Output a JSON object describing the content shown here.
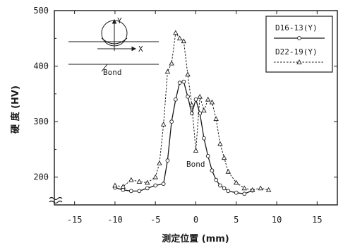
{
  "chart_data": {
    "type": "line",
    "xlabel": "測定位置 (mm)",
    "ylabel": "硬 度 (HV)",
    "xlim": [
      -17.5,
      17.5
    ],
    "ylim": [
      150,
      500
    ],
    "xticks": [
      -15,
      -10,
      -5,
      0,
      5,
      10,
      15
    ],
    "yticks": [
      200,
      300,
      400,
      500
    ],
    "legend_position": "top-right",
    "annotation": "Bond",
    "series": [
      {
        "name": "D16-13(Y)",
        "marker": "circle",
        "line": "solid",
        "x": [
          -10,
          -9,
          -8,
          -7,
          -6,
          -5,
          -4,
          -3.5,
          -3,
          -2.5,
          -2,
          -1.5,
          -1,
          -0.5,
          0,
          0.5,
          1,
          1.5,
          2,
          2.5,
          3,
          3.5,
          4,
          5,
          6,
          7
        ],
        "y": [
          181,
          177,
          175,
          175,
          180,
          185,
          188,
          230,
          300,
          340,
          370,
          372,
          345,
          315,
          340,
          315,
          270,
          238,
          212,
          195,
          185,
          180,
          175,
          172,
          170,
          176
        ]
      },
      {
        "name": "D22-19(Y)",
        "marker": "triangle",
        "line": "dashed",
        "x": [
          -10,
          -9,
          -8,
          -7,
          -6,
          -5,
          -4.5,
          -4,
          -3.5,
          -3,
          -2.5,
          -2,
          -1.5,
          -1,
          -0.5,
          0,
          0.5,
          1,
          1.5,
          2,
          2.5,
          3,
          3.5,
          4,
          5,
          6,
          7,
          8,
          9
        ],
        "y": [
          185,
          183,
          195,
          192,
          190,
          200,
          225,
          295,
          390,
          405,
          460,
          450,
          445,
          385,
          330,
          248,
          345,
          320,
          340,
          335,
          305,
          260,
          235,
          210,
          190,
          180,
          177,
          180,
          177
        ]
      }
    ]
  },
  "inset_labels": {
    "y": "Y",
    "x": "X",
    "bond": "Bond"
  },
  "colors": {
    "ink": "#1a1a1a",
    "background": "#ffffff"
  }
}
